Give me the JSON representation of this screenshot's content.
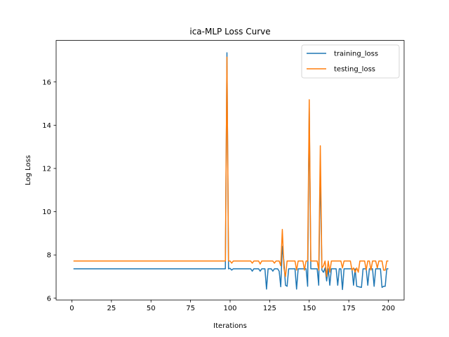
{
  "chart_data": {
    "type": "line",
    "title": "ica-MLP Loss Curve",
    "xlabel": "Iterations",
    "ylabel": "Log Loss",
    "xlim": [
      -9.95,
      209.95
    ],
    "ylim": [
      5.92,
      17.92
    ],
    "xticks": [
      0,
      25,
      50,
      75,
      100,
      125,
      150,
      175,
      200
    ],
    "yticks": [
      6,
      8,
      10,
      12,
      14,
      16
    ],
    "legend_position": "top-right",
    "grid": false,
    "series": [
      {
        "name": "training_loss",
        "color": "#1f77b4",
        "points": [
          [
            1,
            7.36
          ],
          [
            97,
            7.36
          ],
          [
            98,
            17.35
          ],
          [
            99,
            7.36
          ],
          [
            100,
            7.38
          ],
          [
            101,
            7.3
          ],
          [
            102,
            7.36
          ],
          [
            113,
            7.36
          ],
          [
            114,
            7.25
          ],
          [
            115,
            7.36
          ],
          [
            118,
            7.36
          ],
          [
            119,
            7.25
          ],
          [
            120,
            7.36
          ],
          [
            122,
            7.36
          ],
          [
            123,
            6.42
          ],
          [
            124,
            7.36
          ],
          [
            126,
            7.36
          ],
          [
            127,
            7.25
          ],
          [
            128,
            7.36
          ],
          [
            130,
            7.36
          ],
          [
            131,
            7.25
          ],
          [
            132,
            6.53
          ],
          [
            133,
            8.4
          ],
          [
            134,
            7.7
          ],
          [
            135,
            6.6
          ],
          [
            136,
            6.55
          ],
          [
            137,
            7.36
          ],
          [
            141,
            7.36
          ],
          [
            142,
            6.42
          ],
          [
            143,
            7.36
          ],
          [
            146,
            7.36
          ],
          [
            148,
            7.36
          ],
          [
            149,
            6.55
          ],
          [
            150,
            14.8
          ],
          [
            151,
            7.36
          ],
          [
            155,
            7.36
          ],
          [
            156,
            6.6
          ],
          [
            157,
            12.1
          ],
          [
            158,
            7.3
          ],
          [
            159,
            7.2
          ],
          [
            160,
            7.4
          ],
          [
            161,
            6.8
          ],
          [
            162,
            7.36
          ],
          [
            163,
            6.6
          ],
          [
            164,
            7.36
          ],
          [
            167,
            7.36
          ],
          [
            168,
            6.6
          ],
          [
            169,
            7.36
          ],
          [
            170,
            7.36
          ],
          [
            171,
            6.4
          ],
          [
            172,
            7.36
          ],
          [
            177,
            7.36
          ],
          [
            178,
            6.6
          ],
          [
            179,
            7.36
          ],
          [
            180,
            6.55
          ],
          [
            183,
            6.5
          ],
          [
            184,
            7.36
          ],
          [
            186,
            7.36
          ],
          [
            187,
            6.6
          ],
          [
            188,
            7.36
          ],
          [
            190,
            7.36
          ],
          [
            191,
            6.55
          ],
          [
            192,
            7.36
          ],
          [
            195,
            7.36
          ],
          [
            196,
            6.5
          ],
          [
            197,
            6.55
          ],
          [
            198,
            6.55
          ],
          [
            199,
            7.36
          ],
          [
            200,
            7.36
          ]
        ]
      },
      {
        "name": "testing_loss",
        "color": "#ff7f0e",
        "points": [
          [
            1,
            7.72
          ],
          [
            97,
            7.72
          ],
          [
            98,
            17.15
          ],
          [
            99,
            7.72
          ],
          [
            100,
            7.72
          ],
          [
            101,
            7.62
          ],
          [
            102,
            7.72
          ],
          [
            113,
            7.72
          ],
          [
            114,
            7.62
          ],
          [
            115,
            7.72
          ],
          [
            118,
            7.72
          ],
          [
            119,
            7.58
          ],
          [
            120,
            7.72
          ],
          [
            122,
            7.72
          ],
          [
            123,
            7.72
          ],
          [
            127,
            7.72
          ],
          [
            128,
            7.62
          ],
          [
            129,
            7.72
          ],
          [
            131,
            7.72
          ],
          [
            132,
            7.5
          ],
          [
            133,
            9.18
          ],
          [
            134,
            7.4
          ],
          [
            135,
            7.0
          ],
          [
            136,
            7.72
          ],
          [
            141,
            7.72
          ],
          [
            142,
            7.3
          ],
          [
            143,
            7.72
          ],
          [
            146,
            7.72
          ],
          [
            147,
            7.3
          ],
          [
            148,
            7.72
          ],
          [
            149,
            7.72
          ],
          [
            150,
            15.18
          ],
          [
            151,
            7.72
          ],
          [
            155,
            7.72
          ],
          [
            156,
            7.3
          ],
          [
            157,
            13.05
          ],
          [
            158,
            7.4
          ],
          [
            159,
            7.5
          ],
          [
            160,
            7.72
          ],
          [
            161,
            7.0
          ],
          [
            162,
            7.72
          ],
          [
            163,
            7.2
          ],
          [
            164,
            7.72
          ],
          [
            170,
            7.72
          ],
          [
            171,
            7.4
          ],
          [
            172,
            7.72
          ],
          [
            176,
            7.72
          ],
          [
            177,
            7.3
          ],
          [
            178,
            7.4
          ],
          [
            179,
            7.2
          ],
          [
            180,
            7.4
          ],
          [
            181,
            7.2
          ],
          [
            182,
            7.72
          ],
          [
            185,
            7.72
          ],
          [
            186,
            7.3
          ],
          [
            187,
            7.72
          ],
          [
            188,
            7.72
          ],
          [
            189,
            7.3
          ],
          [
            190,
            7.72
          ],
          [
            192,
            7.72
          ],
          [
            193,
            7.4
          ],
          [
            194,
            7.72
          ],
          [
            196,
            7.72
          ],
          [
            197,
            7.3
          ],
          [
            198,
            7.3
          ],
          [
            199,
            7.72
          ],
          [
            200,
            7.72
          ]
        ]
      }
    ]
  }
}
